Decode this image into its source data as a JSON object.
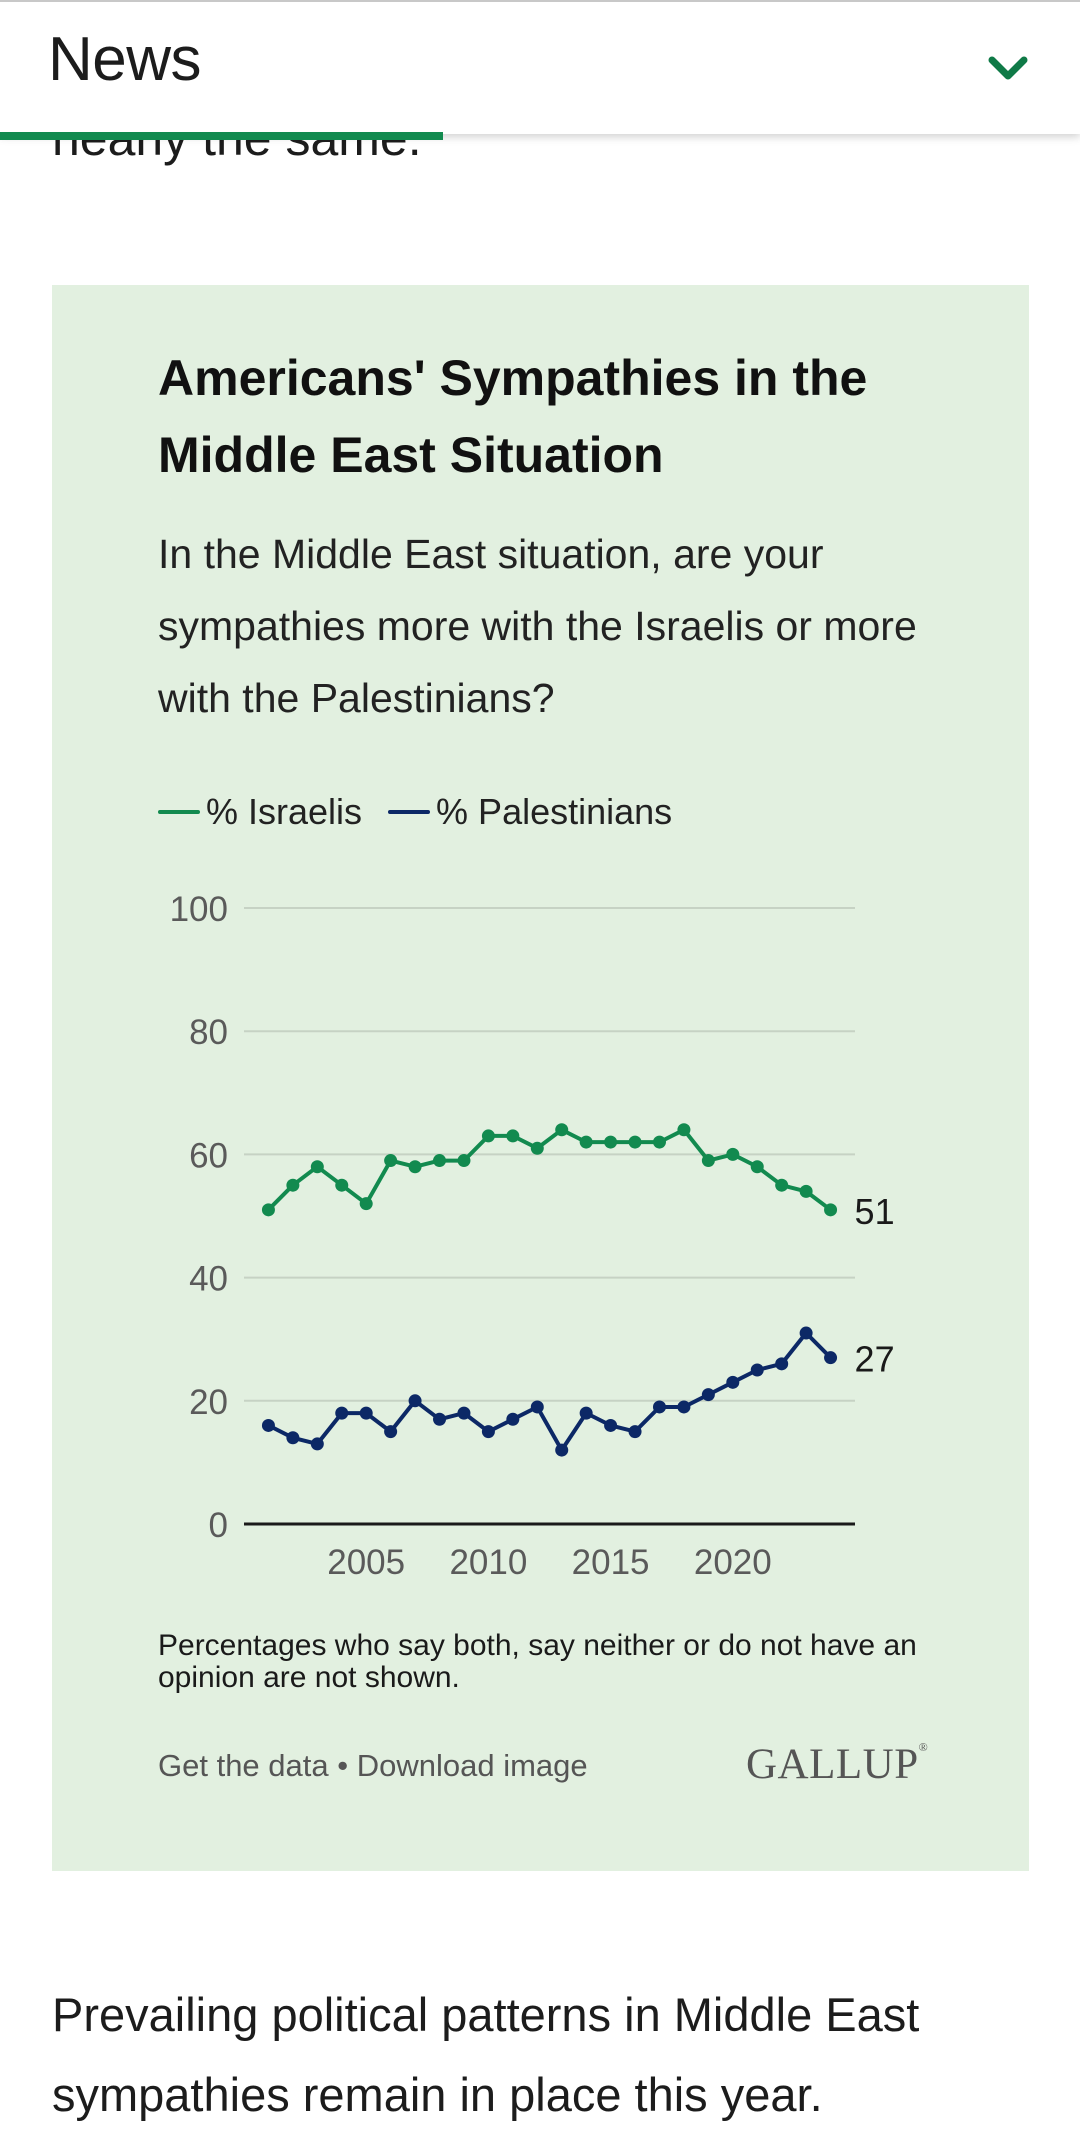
{
  "header": {
    "title": "News",
    "menu_icon": "chevron-down-icon",
    "accent_color": "#128a4f",
    "reading_progress": 0.41
  },
  "cutoff_text": "nearly the same.",
  "chart_card": {
    "background": "#e2f0e0",
    "footnote": "Percentages who say both, say neither or do not have an opinion are not shown.",
    "get_data_label": "Get the data",
    "separator": "•",
    "download_label": "Download image",
    "brand": "GALLUP"
  },
  "chart_data": {
    "type": "line",
    "title": "Americans' Sympathies in the Middle East Situation",
    "subtitle": "In the Middle East situation, are your sympathies more with the Israelis or more with the Palestinians?",
    "x": [
      2001,
      2002,
      2003,
      2004,
      2005,
      2006,
      2007,
      2008,
      2009,
      2010,
      2011,
      2012,
      2013,
      2014,
      2015,
      2016,
      2017,
      2018,
      2019,
      2020,
      2021,
      2022,
      2023,
      2024
    ],
    "x_ticks": [
      2005,
      2010,
      2015,
      2020
    ],
    "ylim": [
      0,
      100
    ],
    "y_ticks": [
      0,
      20,
      40,
      60,
      80,
      100
    ],
    "grid": true,
    "legend_position": "top-left",
    "series": [
      {
        "name": "% Israelis",
        "color": "#128a4f",
        "values": [
          51,
          55,
          58,
          55,
          52,
          59,
          58,
          59,
          59,
          63,
          63,
          61,
          64,
          62,
          62,
          62,
          62,
          64,
          59,
          60,
          58,
          55,
          54,
          51
        ],
        "end_label": "51"
      },
      {
        "name": "% Palestinians",
        "color": "#0c2866",
        "values": [
          16,
          14,
          13,
          18,
          18,
          15,
          20,
          17,
          18,
          15,
          17,
          19,
          12,
          18,
          16,
          15,
          19,
          19,
          21,
          23,
          25,
          26,
          31,
          27
        ],
        "end_label": "27"
      }
    ]
  },
  "article": {
    "paragraph": "Prevailing political patterns in Middle East sympathies remain in place this year."
  }
}
